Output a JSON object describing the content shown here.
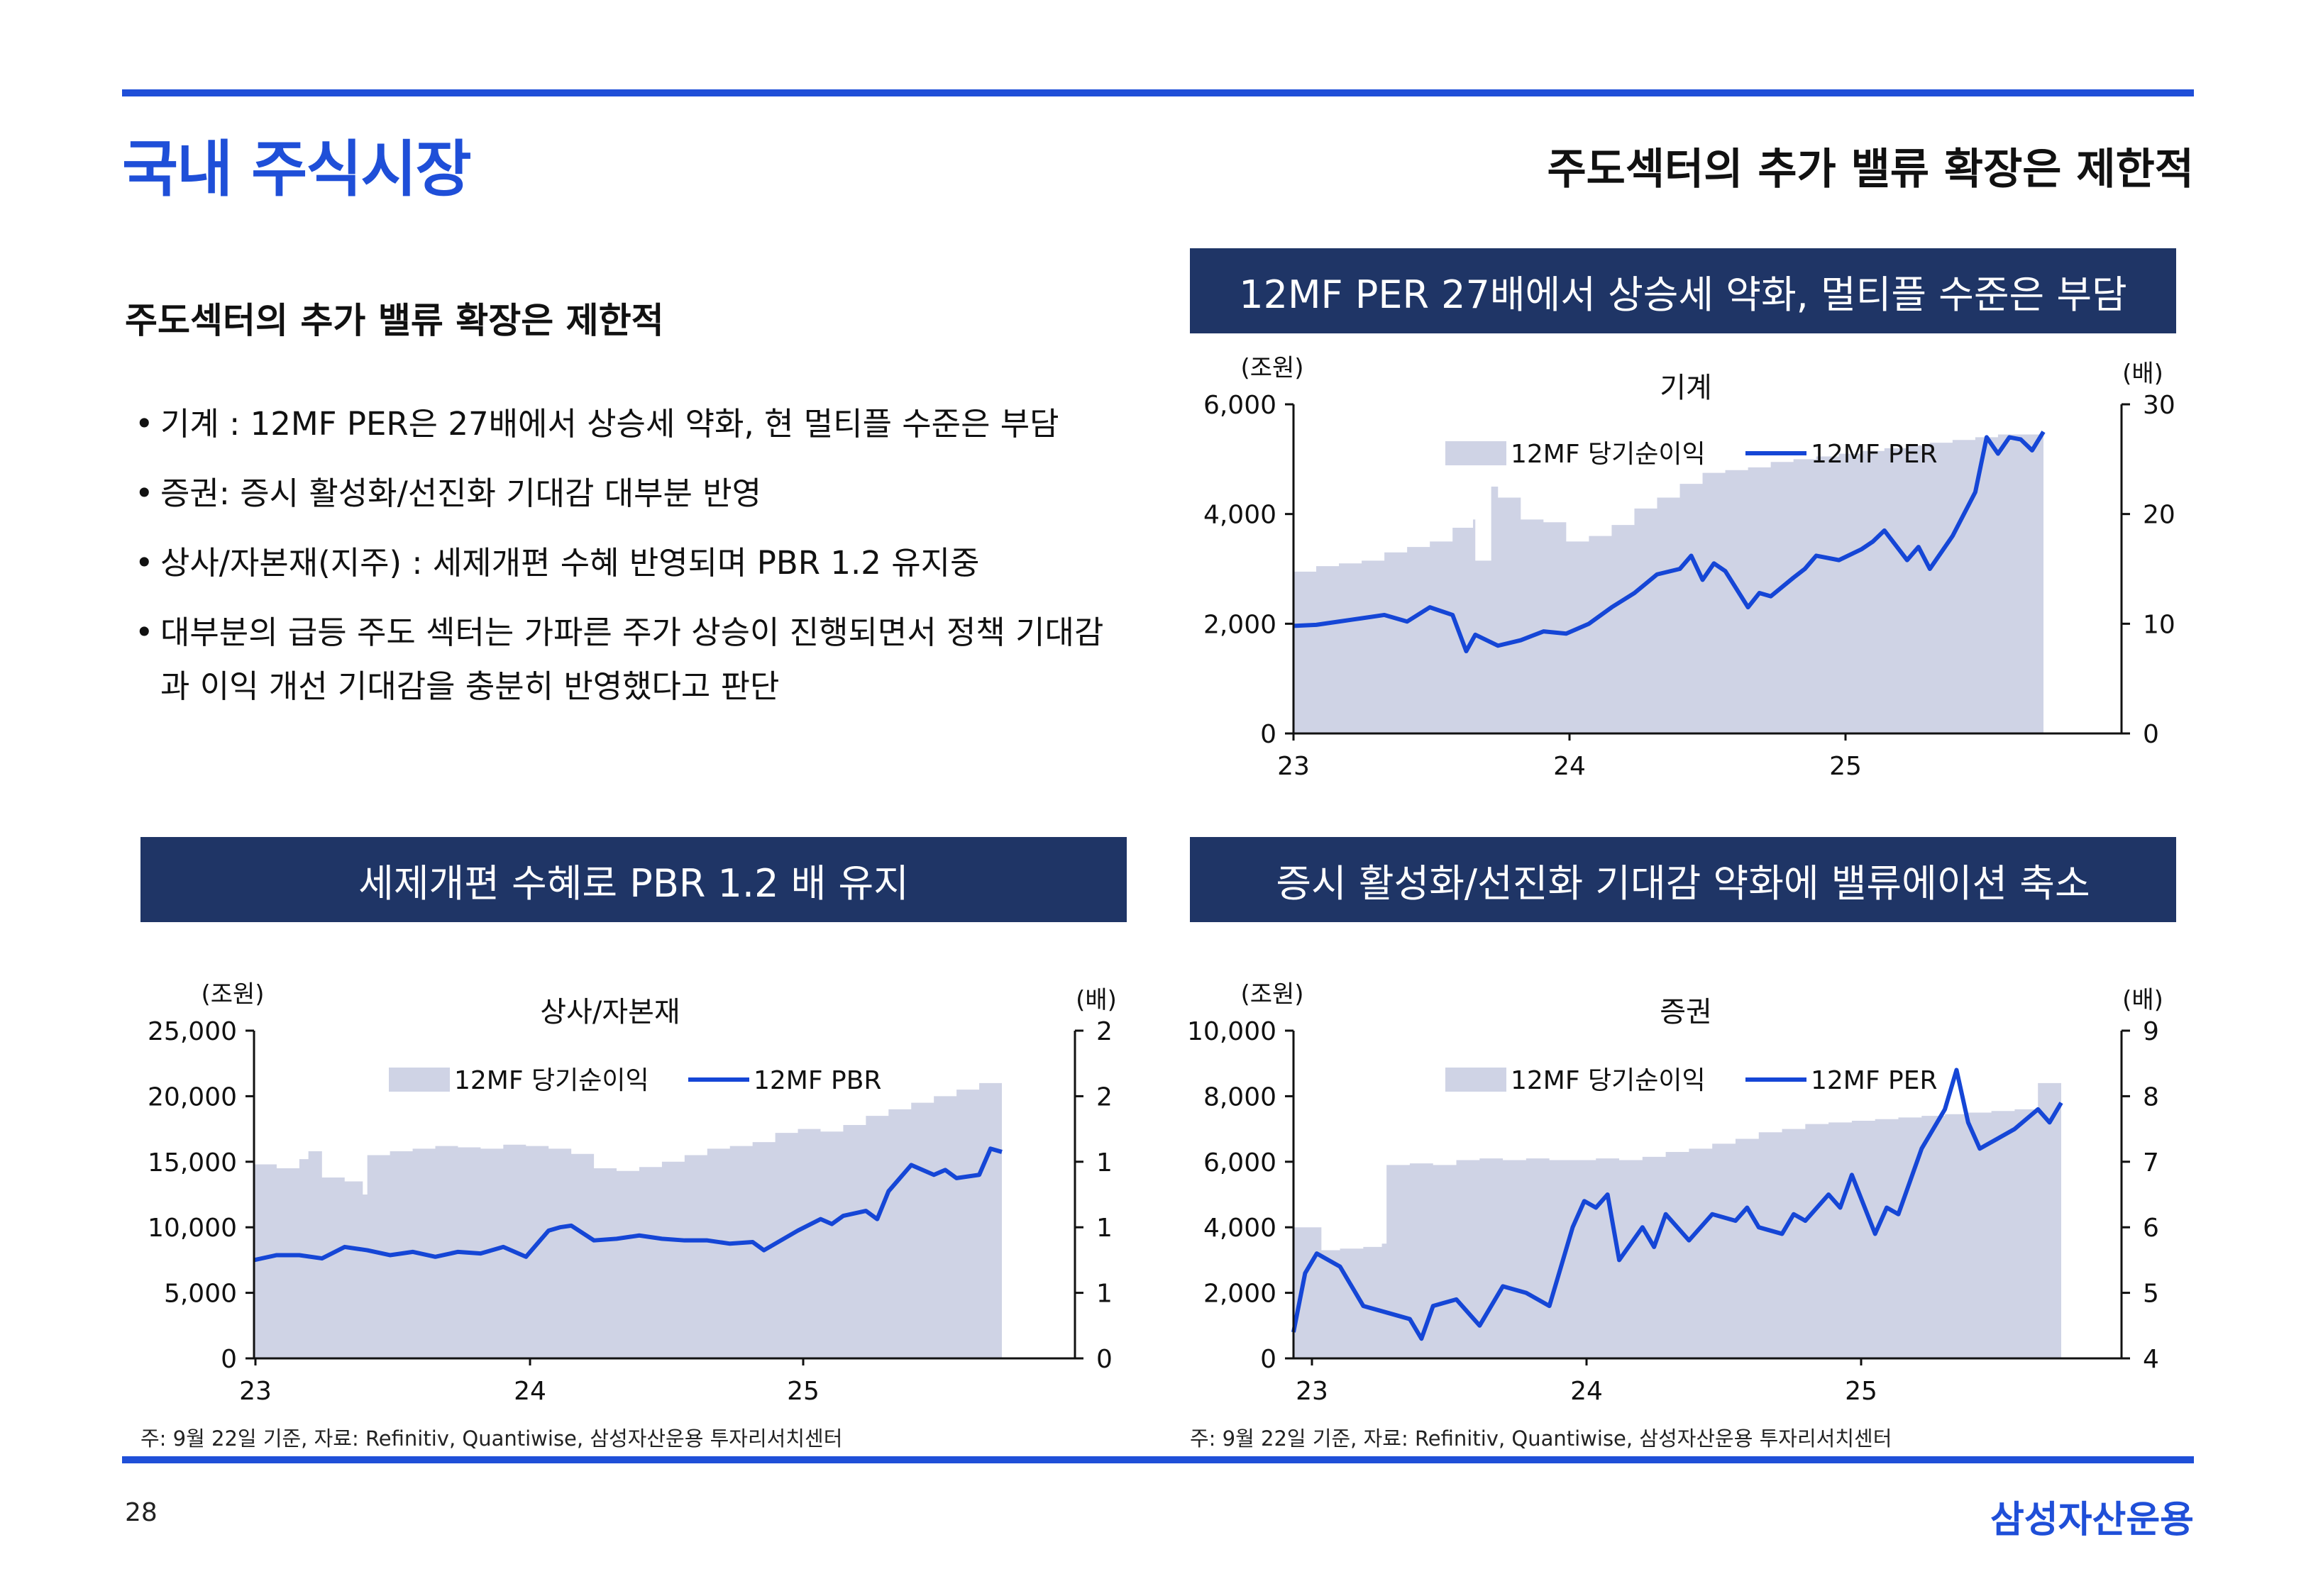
{
  "header": {
    "title": "국내 주식시장",
    "subtitle": "주도섹터의 추가 밸류 확장은 제한적"
  },
  "section": {
    "heading": "주도섹터의 추가 밸류 확장은 제한적",
    "bullets": [
      "기계 : 12MF PER은 27배에서 상승세 약화, 현 멀티플 수준은 부담",
      "증권: 증시 활성화/선진화 기대감 대부분 반영",
      "상사/자본재(지주) : 세제개편 수혜 반영되며 PBR 1.2  유지중",
      "대부분의 급등 주도 섹터는 가파른 주가 상승이 진행되면서 정책 기대감과 이익 개선 기대감을 충분히 반영했다고 판단"
    ]
  },
  "colors": {
    "accent": "#1f4fd8",
    "banner": "#1f3566",
    "area": "#cfd3e5",
    "line": "#1546d6"
  },
  "chart_data": [
    {
      "type": "area+line",
      "banner": "12MF PER 27배에서 상승세 약화, 멀티플 수준은 부담",
      "title": "기계",
      "left_unit": "(조원)",
      "right_unit": "(배)",
      "x_ticks": [
        "23",
        "24",
        "25"
      ],
      "x_range": [
        0,
        33
      ],
      "left_ylim": [
        0,
        6000
      ],
      "left_ticks": [
        "0",
        "2,000",
        "4,000",
        "6,000"
      ],
      "right_ylim": [
        0,
        30
      ],
      "right_ticks": [
        "0",
        "10",
        "20",
        "30"
      ],
      "legend": [
        "12MF 당기순이익",
        "12MF PER"
      ],
      "series": [
        {
          "name": "12MF 당기순이익",
          "axis": "left",
          "x": [
            0,
            1,
            2,
            3,
            4,
            5,
            6,
            7,
            7.9,
            8,
            8.7,
            9,
            10,
            11,
            12,
            13,
            14,
            15,
            16,
            17,
            18,
            19,
            20,
            21,
            22,
            23,
            24,
            25,
            26,
            27,
            28,
            29,
            30,
            31,
            32,
            33
          ],
          "values": [
            2950,
            3050,
            3100,
            3150,
            3300,
            3400,
            3500,
            3750,
            3900,
            3150,
            4500,
            4300,
            3900,
            3850,
            3500,
            3600,
            3800,
            4100,
            4300,
            4550,
            4750,
            4800,
            4850,
            4950,
            5000,
            5050,
            5100,
            5150,
            5200,
            5250,
            5300,
            5350,
            5400,
            5450,
            5450,
            5450
          ]
        },
        {
          "name": "12MF PER",
          "axis": "right",
          "x": [
            0,
            1,
            2,
            3,
            4,
            5,
            6,
            7,
            7.6,
            8,
            9,
            10,
            11,
            12,
            13,
            14,
            15,
            16,
            17,
            17.5,
            18,
            18.5,
            19,
            20,
            20.5,
            21,
            22,
            22.5,
            23,
            24,
            25,
            25.5,
            26,
            27,
            27.5,
            28,
            29,
            30,
            30.5,
            31,
            31.5,
            32,
            32.5,
            33
          ],
          "values": [
            9.8,
            9.9,
            10.2,
            10.5,
            10.8,
            10.2,
            11.5,
            10.8,
            7.5,
            9.0,
            8.0,
            8.5,
            9.3,
            9.1,
            10.0,
            11.5,
            12.8,
            14.5,
            15.0,
            16.2,
            14.0,
            15.5,
            14.8,
            11.5,
            12.8,
            12.5,
            14.2,
            15.0,
            16.2,
            15.8,
            16.8,
            17.5,
            18.5,
            15.8,
            17.0,
            15.0,
            18.0,
            22.0,
            27.0,
            25.5,
            27.0,
            26.8,
            25.8,
            27.5
          ]
        }
      ]
    },
    {
      "type": "area+line",
      "banner": "세제개편 수혜로 PBR 1.2 배 유지",
      "title": "상사/자본재",
      "left_unit": "(조원)",
      "right_unit": "(배)",
      "x_ticks": [
        "23",
        "24",
        "25"
      ],
      "x_range": [
        0,
        33
      ],
      "left_ylim": [
        0,
        25000
      ],
      "left_ticks": [
        "0",
        "5,000",
        "10,000",
        "15,000",
        "20,000",
        "25,000"
      ],
      "right_ylim": [
        0,
        2
      ],
      "right_ticks": [
        "0",
        "1",
        "1",
        "1",
        "2",
        "2"
      ],
      "legend": [
        "12MF 당기순이익",
        "12MF PBR"
      ],
      "series": [
        {
          "name": "12MF 당기순이익",
          "axis": "left",
          "x": [
            0,
            1,
            2,
            2.4,
            3,
            4,
            4.8,
            5,
            6,
            7,
            8,
            9,
            10,
            11,
            12,
            13,
            14,
            15,
            16,
            17,
            18,
            19,
            20,
            21,
            22,
            23,
            24,
            25,
            26,
            27,
            28,
            29,
            30,
            31,
            32,
            33
          ],
          "values": [
            14800,
            14500,
            15200,
            15800,
            13800,
            13500,
            12500,
            15500,
            15800,
            16000,
            16200,
            16100,
            16000,
            16300,
            16200,
            16000,
            15600,
            14500,
            14300,
            14600,
            15000,
            15500,
            16000,
            16200,
            16500,
            17200,
            17500,
            17300,
            17800,
            18500,
            19000,
            19500,
            20000,
            20500,
            21000,
            21500
          ]
        },
        {
          "name": "12MF PBR",
          "axis": "right",
          "x": [
            0,
            1,
            2,
            3,
            4,
            5,
            6,
            7,
            8,
            9,
            10,
            11,
            12,
            13,
            13.5,
            14,
            15,
            16,
            17,
            18,
            19,
            20,
            21,
            22,
            22.5,
            23,
            24,
            25,
            25.5,
            26,
            27,
            27.5,
            28,
            29,
            30,
            30.5,
            31,
            32,
            32.5,
            33
          ],
          "values": [
            0.6,
            0.63,
            0.63,
            0.61,
            0.68,
            0.66,
            0.63,
            0.65,
            0.62,
            0.65,
            0.64,
            0.68,
            0.62,
            0.78,
            0.8,
            0.81,
            0.72,
            0.73,
            0.75,
            0.73,
            0.72,
            0.72,
            0.7,
            0.71,
            0.66,
            0.7,
            0.78,
            0.85,
            0.82,
            0.87,
            0.9,
            0.85,
            1.02,
            1.18,
            1.12,
            1.15,
            1.1,
            1.12,
            1.28,
            1.26
          ]
        }
      ]
    },
    {
      "type": "area+line",
      "banner": "증시 활성화/선진화 기대감 약화에 밸류에이션 축소",
      "title": "증권",
      "left_unit": "(조원)",
      "right_unit": "(배)",
      "x_ticks": [
        "23",
        "24",
        "25"
      ],
      "x_range": [
        0,
        33
      ],
      "left_ylim": [
        0,
        10000
      ],
      "left_ticks": [
        "0",
        "2,000",
        "4,000",
        "6,000",
        "8,000",
        "10,000"
      ],
      "right_ylim": [
        4,
        9
      ],
      "right_ticks": [
        "4",
        "5",
        "6",
        "7",
        "8",
        "9"
      ],
      "legend": [
        "12MF 당기순이익",
        "12MF PER"
      ],
      "series": [
        {
          "name": "12MF 당기순이익",
          "axis": "left",
          "x": [
            0,
            1,
            1.2,
            2,
            3,
            3.8,
            4,
            5,
            6,
            7,
            8,
            9,
            10,
            11,
            12,
            13,
            14,
            15,
            16,
            17,
            18,
            19,
            20,
            21,
            22,
            23,
            24,
            25,
            26,
            27,
            28,
            29,
            30,
            31,
            32,
            33
          ],
          "values": [
            4000,
            4000,
            3300,
            3350,
            3400,
            3500,
            5900,
            5950,
            5900,
            6050,
            6100,
            6050,
            6100,
            6050,
            6050,
            6100,
            6050,
            6150,
            6300,
            6400,
            6550,
            6700,
            6900,
            7000,
            7150,
            7200,
            7250,
            7300,
            7350,
            7400,
            7450,
            7500,
            7550,
            7600,
            8400,
            8400
          ]
        },
        {
          "name": "12MF PER",
          "axis": "right",
          "x": [
            0,
            0.5,
            1,
            2,
            3,
            4,
            5,
            5.5,
            6,
            7,
            8,
            9,
            10,
            11,
            12,
            12.5,
            13,
            13.5,
            14,
            15,
            15.5,
            16,
            17,
            18,
            19,
            19.5,
            20,
            21,
            21.5,
            22,
            23,
            23.5,
            24,
            25,
            25.5,
            26,
            27,
            27.5,
            28,
            28.5,
            29,
            29.5,
            30,
            31,
            32,
            32.5,
            33
          ],
          "values": [
            4.4,
            5.3,
            5.6,
            5.4,
            4.8,
            4.7,
            4.6,
            4.3,
            4.8,
            4.9,
            4.5,
            5.1,
            5.0,
            4.8,
            6.0,
            6.4,
            6.3,
            6.5,
            5.5,
            6.0,
            5.7,
            6.2,
            5.8,
            6.2,
            6.1,
            6.3,
            6.0,
            5.9,
            6.2,
            6.1,
            6.5,
            6.3,
            6.8,
            5.9,
            6.3,
            6.2,
            7.2,
            7.5,
            7.8,
            8.4,
            7.6,
            7.2,
            7.3,
            7.5,
            7.8,
            7.6,
            7.9
          ]
        }
      ]
    }
  ],
  "footer": {
    "note_left": "주: 9월 22일 기준, 자료: Refinitiv, Quantiwise, 삼성자산운용 투자리서치센터",
    "note_right": "주: 9월 22일 기준, 자료: Refinitiv, Quantiwise, 삼성자산운용 투자리서치센터",
    "page_number": "28",
    "brand": "삼성자산운용"
  }
}
